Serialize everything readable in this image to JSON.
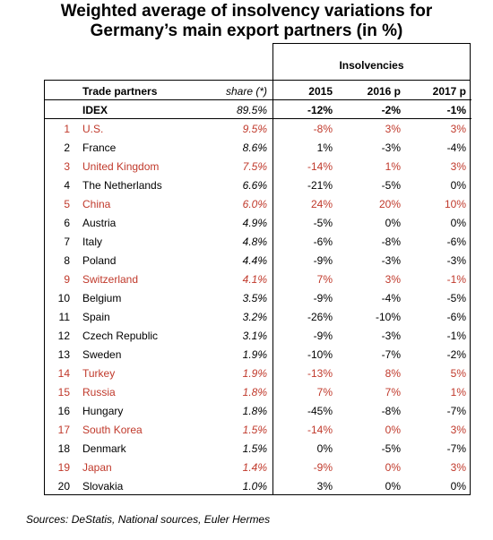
{
  "title_line1": "Weighted average of insolvency variations for",
  "title_line2": "Germany’s main export partners (in %)",
  "group_header": "Insolvencies",
  "columns": {
    "partner": "Trade partners",
    "share": "share (*)",
    "y2015": "2015",
    "y2016": "2016 p",
    "y2017": "2017 p"
  },
  "idex": {
    "name": "IDEX",
    "share": "89.5%",
    "y2015": "-12%",
    "y2016": "-2%",
    "y2017": "-1%"
  },
  "rows": [
    {
      "num": "1",
      "name": "U.S.",
      "share": "9.5%",
      "y2015": "-8%",
      "y2016": "3%",
      "y2017": "3%",
      "red": true
    },
    {
      "num": "2",
      "name": "France",
      "share": "8.6%",
      "y2015": "1%",
      "y2016": "-3%",
      "y2017": "-4%",
      "red": false
    },
    {
      "num": "3",
      "name": "United Kingdom",
      "share": "7.5%",
      "y2015": "-14%",
      "y2016": "1%",
      "y2017": "3%",
      "red": true
    },
    {
      "num": "4",
      "name": "The Netherlands",
      "share": "6.6%",
      "y2015": "-21%",
      "y2016": "-5%",
      "y2017": "0%",
      "red": false
    },
    {
      "num": "5",
      "name": "China",
      "share": "6.0%",
      "y2015": "24%",
      "y2016": "20%",
      "y2017": "10%",
      "red": true
    },
    {
      "num": "6",
      "name": "Austria",
      "share": "4.9%",
      "y2015": "-5%",
      "y2016": "0%",
      "y2017": "0%",
      "red": false
    },
    {
      "num": "7",
      "name": "Italy",
      "share": "4.8%",
      "y2015": "-6%",
      "y2016": "-8%",
      "y2017": "-6%",
      "red": false
    },
    {
      "num": "8",
      "name": "Poland",
      "share": "4.4%",
      "y2015": "-9%",
      "y2016": "-3%",
      "y2017": "-3%",
      "red": false
    },
    {
      "num": "9",
      "name": "Switzerland",
      "share": "4.1%",
      "y2015": "7%",
      "y2016": "3%",
      "y2017": "-1%",
      "red": true
    },
    {
      "num": "10",
      "name": "Belgium",
      "share": "3.5%",
      "y2015": "-9%",
      "y2016": "-4%",
      "y2017": "-5%",
      "red": false
    },
    {
      "num": "11",
      "name": "Spain",
      "share": "3.2%",
      "y2015": "-26%",
      "y2016": "-10%",
      "y2017": "-6%",
      "red": false
    },
    {
      "num": "12",
      "name": "Czech Republic",
      "share": "3.1%",
      "y2015": "-9%",
      "y2016": "-3%",
      "y2017": "-1%",
      "red": false
    },
    {
      "num": "13",
      "name": "Sweden",
      "share": "1.9%",
      "y2015": "-10%",
      "y2016": "-7%",
      "y2017": "-2%",
      "red": false
    },
    {
      "num": "14",
      "name": "Turkey",
      "share": "1.9%",
      "y2015": "-13%",
      "y2016": "8%",
      "y2017": "5%",
      "red": true
    },
    {
      "num": "15",
      "name": "Russia",
      "share": "1.8%",
      "y2015": "7%",
      "y2016": "7%",
      "y2017": "1%",
      "red": true
    },
    {
      "num": "16",
      "name": "Hungary",
      "share": "1.8%",
      "y2015": "-45%",
      "y2016": "-8%",
      "y2017": "-7%",
      "red": false
    },
    {
      "num": "17",
      "name": "South Korea",
      "share": "1.5%",
      "y2015": "-14%",
      "y2016": "0%",
      "y2017": "3%",
      "red": true
    },
    {
      "num": "18",
      "name": "Denmark",
      "share": "1.5%",
      "y2015": "0%",
      "y2016": "-5%",
      "y2017": "-7%",
      "red": false
    },
    {
      "num": "19",
      "name": "Japan",
      "share": "1.4%",
      "y2015": "-9%",
      "y2016": "0%",
      "y2017": "3%",
      "red": true
    },
    {
      "num": "20",
      "name": "Slovakia",
      "share": "1.0%",
      "y2015": "3%",
      "y2016": "0%",
      "y2017": "0%",
      "red": false
    }
  ],
  "colors": {
    "highlight": "#c0392b"
  },
  "source": "Sources: DeStatis, National sources, Euler Hermes"
}
